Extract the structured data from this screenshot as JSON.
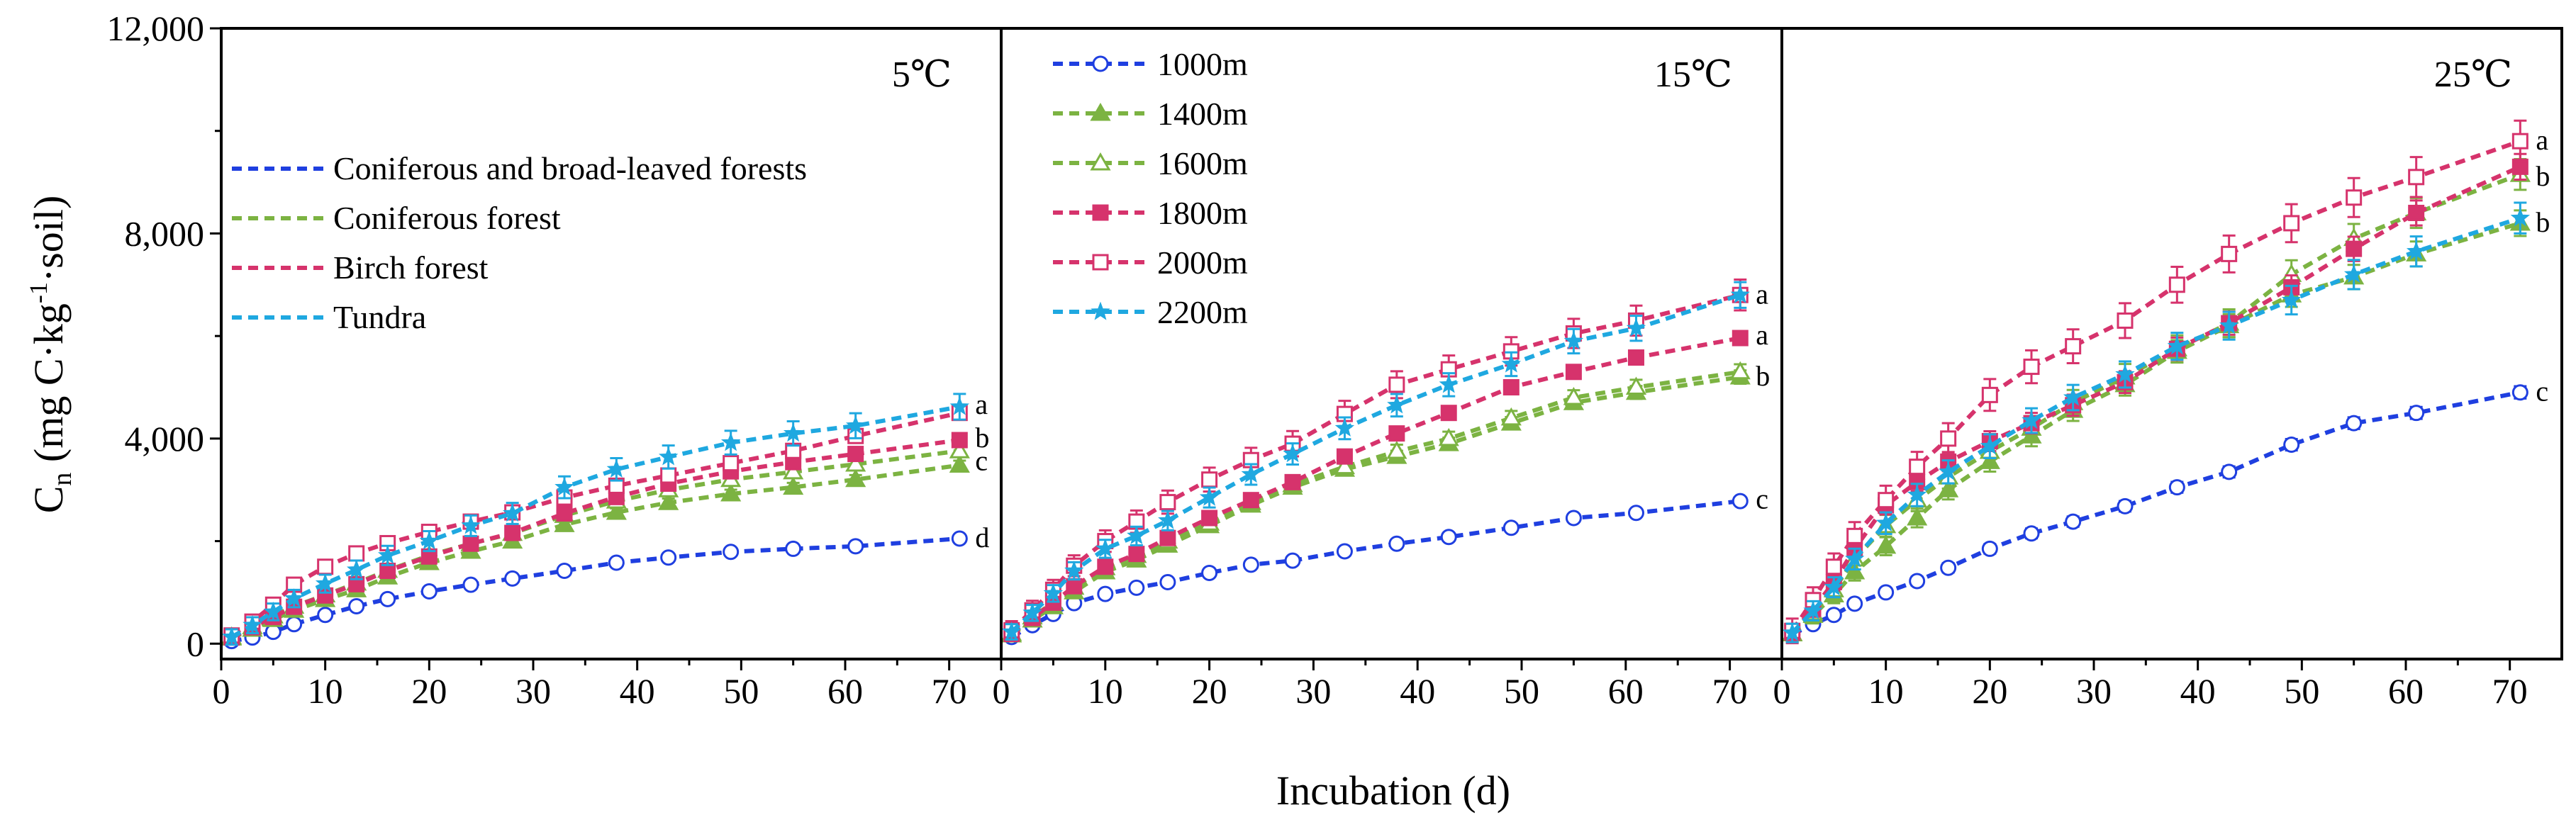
{
  "chart_data": {
    "type": "line",
    "xlabel": "Incubation (d)",
    "ylabel": {
      "main": "C",
      "sub": "n",
      "units": "(mg C·kg",
      "sup": "-1",
      "tail": "·soil)"
    },
    "xlim": [
      0,
      75
    ],
    "ylim": [
      -300,
      12000
    ],
    "xticks": [
      0,
      10,
      20,
      30,
      40,
      50,
      60,
      70
    ],
    "yticks": [
      0,
      4000,
      8000,
      12000
    ],
    "ytick_labels": [
      "0",
      "4,000",
      "8,000",
      "12,000"
    ],
    "x": [
      1,
      3,
      5,
      7,
      10,
      13,
      16,
      20,
      24,
      28,
      33,
      38,
      43,
      49,
      55,
      61,
      71
    ],
    "legend_forest": {
      "entries": [
        {
          "label": "Coniferous and broad-leaved forests",
          "color": "#1f3fe0"
        },
        {
          "label": "Coniferous forest",
          "color": "#7cb342"
        },
        {
          "label": "Birch forest",
          "color": "#d6336c"
        },
        {
          "label": "Tundra",
          "color": "#1fa8e0"
        }
      ]
    },
    "legend_altitude": {
      "entries": [
        {
          "label": "1000m",
          "color": "#1f3fe0",
          "marker": "circle-open"
        },
        {
          "label": "1400m",
          "color": "#7cb342",
          "marker": "triangle-filled"
        },
        {
          "label": "1600m",
          "color": "#7cb342",
          "marker": "triangle-open"
        },
        {
          "label": "1800m",
          "color": "#d6336c",
          "marker": "square-filled"
        },
        {
          "label": "2000m",
          "color": "#d6336c",
          "marker": "square-open"
        },
        {
          "label": "2200m",
          "color": "#1fa8e0",
          "marker": "star"
        }
      ]
    },
    "panels": [
      {
        "title": "5℃",
        "series": [
          {
            "name": "1000m",
            "color": "#1f3fe0",
            "marker": "circle-open",
            "values": [
              50,
              120,
              230,
              380,
              560,
              730,
              870,
              1020,
              1150,
              1270,
              1420,
              1580,
              1680,
              1790,
              1850,
              1900,
              2050
            ],
            "err": 60
          },
          {
            "name": "1400m",
            "color": "#7cb342",
            "marker": "triangle-filled",
            "values": [
              110,
              280,
              470,
              650,
              860,
              1050,
              1300,
              1580,
              1800,
              2000,
              2320,
              2560,
              2750,
              2920,
              3050,
              3200,
              3480
            ],
            "err": 90
          },
          {
            "name": "1600m",
            "color": "#7cb342",
            "marker": "triangle-open",
            "values": [
              130,
              330,
              540,
              730,
              950,
              1180,
              1430,
              1720,
              1950,
              2150,
              2500,
              2780,
              3000,
              3200,
              3350,
              3500,
              3760
            ],
            "err": 100
          },
          {
            "name": "1800m",
            "color": "#d6336c",
            "marker": "square-filled",
            "values": [
              120,
              320,
              520,
              720,
              940,
              1160,
              1420,
              1700,
              1950,
              2160,
              2540,
              2860,
              3120,
              3360,
              3540,
              3700,
              3970
            ],
            "err": 100
          },
          {
            "name": "2000m",
            "color": "#d6336c",
            "marker": "square-open",
            "values": [
              160,
              430,
              760,
              1150,
              1500,
              1760,
              1960,
              2180,
              2380,
              2560,
              2850,
              3080,
              3280,
              3520,
              3760,
              4050,
              4500
            ],
            "err": 130
          },
          {
            "name": "2200m",
            "color": "#1fa8e0",
            "marker": "star",
            "values": [
              130,
              360,
              620,
              880,
              1170,
              1440,
              1720,
              2000,
              2300,
              2540,
              3050,
              3400,
              3640,
              3920,
              4100,
              4250,
              4620
            ],
            "err": 250
          }
        ],
        "letters": [
          {
            "text": "a",
            "y": 4650
          },
          {
            "text": "b",
            "y": 4000
          },
          {
            "text": "c",
            "y": 3550
          },
          {
            "text": "d",
            "y": 2050
          }
        ]
      },
      {
        "title": "15℃",
        "series": [
          {
            "name": "1000m",
            "color": "#1f3fe0",
            "marker": "circle-open",
            "values": [
              130,
              360,
              580,
              790,
              970,
              1090,
              1200,
              1380,
              1540,
              1620,
              1800,
              1950,
              2080,
              2260,
              2450,
              2550,
              2780
            ],
            "err": 70
          },
          {
            "name": "1400m",
            "color": "#7cb342",
            "marker": "triangle-filled",
            "values": [
              170,
              460,
              720,
              1010,
              1400,
              1630,
              1920,
              2300,
              2700,
              3050,
              3400,
              3650,
              3900,
              4300,
              4700,
              4900,
              5200
            ],
            "err": 130
          },
          {
            "name": "1600m",
            "color": "#7cb342",
            "marker": "triangle-open",
            "values": [
              200,
              520,
              800,
              1100,
              1480,
              1720,
              2000,
              2350,
              2750,
              3100,
              3450,
              3750,
              4000,
              4400,
              4800,
              5000,
              5300
            ],
            "err": 150
          },
          {
            "name": "1800m",
            "color": "#d6336c",
            "marker": "square-filled",
            "values": [
              190,
              500,
              800,
              1120,
              1500,
              1750,
              2060,
              2450,
              2800,
              3150,
              3650,
              4100,
              4500,
              5000,
              5300,
              5580,
              5960
            ],
            "err": 100
          },
          {
            "name": "2000m",
            "color": "#d6336c",
            "marker": "square-open",
            "values": [
              260,
              650,
              1050,
              1520,
              2000,
              2380,
              2760,
              3200,
              3580,
              3900,
              4480,
              5050,
              5350,
              5700,
              6050,
              6300,
              6800
            ],
            "err": 300
          },
          {
            "name": "2200m",
            "color": "#1fa8e0",
            "marker": "star",
            "values": [
              230,
              600,
              980,
              1420,
              1850,
              2100,
              2400,
              2850,
              3300,
              3700,
              4200,
              4650,
              5050,
              5450,
              5900,
              6150,
              6800
            ],
            "err": 250
          }
        ],
        "letters": [
          {
            "text": "a",
            "y": 6800
          },
          {
            "text": "a",
            "y": 6000
          },
          {
            "text": "b",
            "y": 5200
          },
          {
            "text": "c",
            "y": 2800
          }
        ]
      },
      {
        "title": "25℃",
        "series": [
          {
            "name": "1000m",
            "color": "#1f3fe0",
            "marker": "circle-open",
            "values": [
              180,
              380,
              560,
              780,
              1000,
              1220,
              1480,
              1850,
              2150,
              2380,
              2680,
              3050,
              3350,
              3880,
              4300,
              4500,
              4900
            ],
            "err": 120
          },
          {
            "name": "1400m",
            "color": "#7cb342",
            "marker": "triangle-filled",
            "values": [
              190,
              550,
              950,
              1400,
              1900,
              2450,
              3000,
              3550,
              4050,
              4550,
              5050,
              5700,
              6200,
              6800,
              7150,
              7600,
              8200
            ],
            "err": 250
          },
          {
            "name": "1600m",
            "color": "#7cb342",
            "marker": "triangle-open",
            "values": [
              200,
              600,
              1050,
              1650,
              2300,
              2800,
              3250,
              3750,
              4200,
              4700,
              5200,
              5750,
              6250,
              7200,
              7900,
              8400,
              9150
            ],
            "err": 300
          },
          {
            "name": "1800m",
            "color": "#d6336c",
            "marker": "square-filled",
            "values": [
              220,
              680,
              1200,
              1850,
              2700,
              3150,
              3550,
              3950,
              4300,
              4650,
              5100,
              5750,
              6250,
              6950,
              7700,
              8400,
              9300
            ],
            "err": 250
          },
          {
            "name": "2000m",
            "color": "#d6336c",
            "marker": "square-open",
            "values": [
              250,
              850,
              1500,
              2100,
              2800,
              3450,
              4000,
              4850,
              5400,
              5800,
              6300,
              7000,
              7600,
              8200,
              8700,
              9100,
              9800
            ],
            "err": 400
          },
          {
            "name": "2200m",
            "color": "#1fa8e0",
            "marker": "star",
            "values": [
              210,
              640,
              1100,
              1650,
              2350,
              2900,
              3350,
              3850,
              4350,
              4800,
              5250,
              5800,
              6200,
              6700,
              7200,
              7650,
              8300
            ],
            "err": 300
          }
        ],
        "letters": [
          {
            "text": "a",
            "y": 9800
          },
          {
            "text": "b",
            "y": 9100
          },
          {
            "text": "b",
            "y": 8200
          },
          {
            "text": "c",
            "y": 4900
          }
        ]
      }
    ]
  }
}
